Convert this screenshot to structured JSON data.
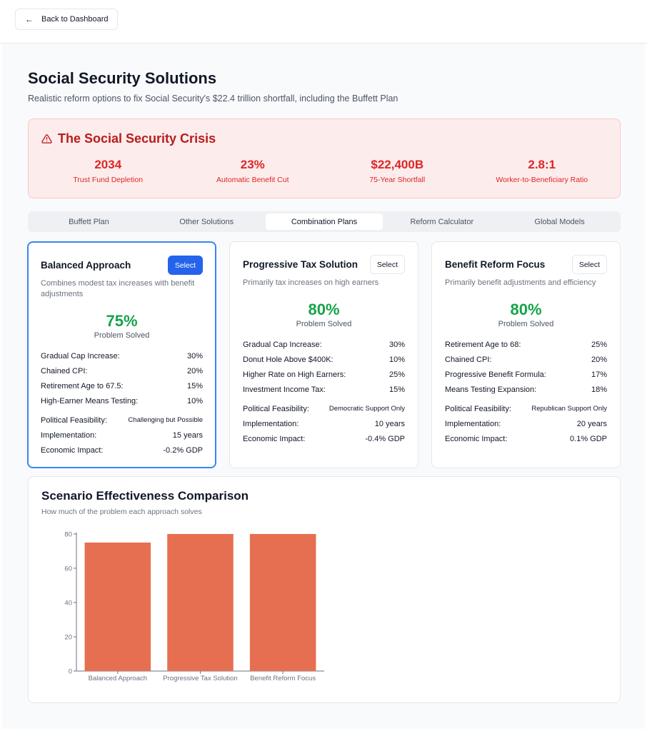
{
  "nav": {
    "back_label": "Back to Dashboard"
  },
  "page": {
    "title": "Social Security Solutions",
    "subtitle": "Realistic reform options to fix Social Security's $22.4 trillion shortfall, including the Buffett Plan"
  },
  "crisis": {
    "title": "The Social Security Crisis",
    "stats": [
      {
        "value": "2034",
        "label": "Trust Fund Depletion"
      },
      {
        "value": "23%",
        "label": "Automatic Benefit Cut"
      },
      {
        "value": "$22,400B",
        "label": "75-Year Shortfall"
      },
      {
        "value": "2.8:1",
        "label": "Worker-to-Beneficiary Ratio"
      }
    ]
  },
  "tabs": [
    {
      "label": "Buffett Plan"
    },
    {
      "label": "Other Solutions"
    },
    {
      "label": "Combination Plans"
    },
    {
      "label": "Reform Calculator"
    },
    {
      "label": "Global Models"
    }
  ],
  "plans": [
    {
      "title": "Balanced Approach",
      "select_label": "Select",
      "description": "Combines modest tax increases with benefit adjustments",
      "percent": "75%",
      "percent_label": "Problem Solved",
      "components": [
        {
          "label": "Gradual Cap Increase:",
          "value": "30%"
        },
        {
          "label": "Chained CPI:",
          "value": "20%"
        },
        {
          "label": "Retirement Age to 67.5:",
          "value": "15%"
        },
        {
          "label": "High-Earner Means Testing:",
          "value": "10%"
        }
      ],
      "details": [
        {
          "label": "Political Feasibility:",
          "value": "Challenging but Possible"
        },
        {
          "label": "Implementation:",
          "value": "15 years"
        },
        {
          "label": "Economic Impact:",
          "value": "-0.2% GDP"
        }
      ]
    },
    {
      "title": "Progressive Tax Solution",
      "select_label": "Select",
      "description": "Primarily tax increases on high earners",
      "percent": "80%",
      "percent_label": "Problem Solved",
      "components": [
        {
          "label": "Gradual Cap Increase:",
          "value": "30%"
        },
        {
          "label": "Donut Hole Above $400K:",
          "value": "10%"
        },
        {
          "label": "Higher Rate on High Earners:",
          "value": "25%"
        },
        {
          "label": "Investment Income Tax:",
          "value": "15%"
        }
      ],
      "details": [
        {
          "label": "Political Feasibility:",
          "value": "Democratic Support Only"
        },
        {
          "label": "Implementation:",
          "value": "10 years"
        },
        {
          "label": "Economic Impact:",
          "value": "-0.4% GDP"
        }
      ]
    },
    {
      "title": "Benefit Reform Focus",
      "select_label": "Select",
      "description": "Primarily benefit adjustments and efficiency",
      "percent": "80%",
      "percent_label": "Problem Solved",
      "components": [
        {
          "label": "Retirement Age to 68:",
          "value": "25%"
        },
        {
          "label": "Chained CPI:",
          "value": "20%"
        },
        {
          "label": "Progressive Benefit Formula:",
          "value": "17%"
        },
        {
          "label": "Means Testing Expansion:",
          "value": "18%"
        }
      ],
      "details": [
        {
          "label": "Political Feasibility:",
          "value": "Republican Support Only"
        },
        {
          "label": "Implementation:",
          "value": "20 years"
        },
        {
          "label": "Economic Impact:",
          "value": "0.1% GDP"
        }
      ]
    }
  ],
  "comparison": {
    "title": "Scenario Effectiveness Comparison",
    "subtitle": "How much of the problem each approach solves"
  },
  "chart_data": {
    "type": "bar",
    "categories": [
      "Balanced Approach",
      "Progressive Tax Solution",
      "Benefit Reform Focus"
    ],
    "values": [
      75,
      80,
      80
    ],
    "ylim": [
      0,
      80
    ],
    "yticks": [
      0,
      20,
      40,
      60,
      80
    ],
    "grid": false,
    "title": "",
    "xlabel": "",
    "ylabel": ""
  },
  "colors": {
    "bar": "#e76f51",
    "crisis_red": "#dc2626",
    "success_green": "#16a34a",
    "accent_blue": "#2563eb"
  }
}
